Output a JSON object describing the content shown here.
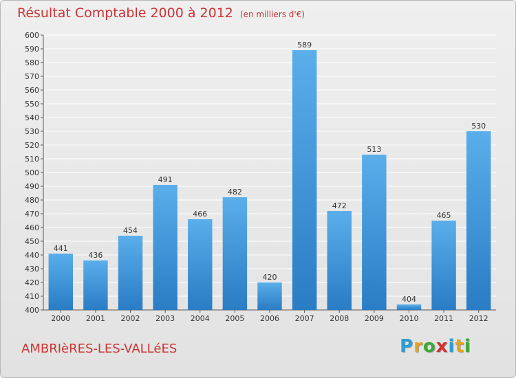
{
  "header": {
    "title": "Résultat Comptable 2000 à 2012",
    "subtitle": "(en milliers d'€)"
  },
  "footer": {
    "commune": "AMBRIèRES-LES-VALLéES",
    "logo": {
      "letters": [
        "P",
        "r",
        "o",
        "x",
        "i",
        "t",
        "i"
      ],
      "colors": [
        "#2a9fd6",
        "#e8a317",
        "#3aaa35",
        "#d43030",
        "#2a9fd6",
        "#e8a317",
        "#3aaa35"
      ]
    }
  },
  "colors": {
    "bar": "#4a9fe0",
    "bar_dark": "#2a7cc4",
    "grid": "#ffffff",
    "accent": "#cc3333"
  },
  "chart_data": {
    "type": "bar",
    "categories": [
      "2000",
      "2001",
      "2002",
      "2003",
      "2004",
      "2005",
      "2006",
      "2007",
      "2008",
      "2009",
      "2010",
      "2011",
      "2012"
    ],
    "values": [
      441,
      436,
      454,
      491,
      466,
      482,
      420,
      589,
      472,
      513,
      404,
      465,
      530
    ],
    "ylim": [
      400,
      600
    ],
    "yticks": [
      400,
      410,
      420,
      430,
      440,
      450,
      460,
      470,
      480,
      490,
      500,
      510,
      520,
      530,
      540,
      550,
      560,
      570,
      580,
      590,
      600
    ],
    "grid": true,
    "legend": "none"
  }
}
